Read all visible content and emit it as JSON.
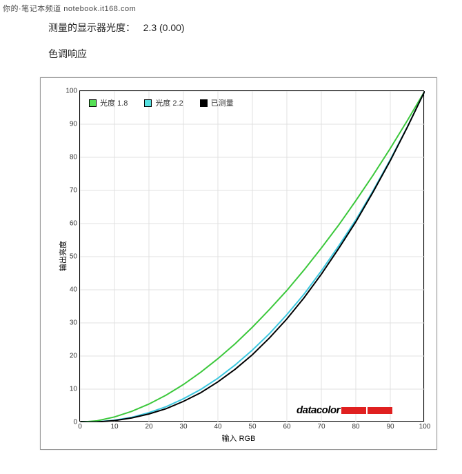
{
  "watermark": "你的·笔记本频道 notebook.it168.com",
  "header": {
    "measured_label": "测量的显示器光度：",
    "measured_value": "2.3 (0.00)",
    "section_title": "色调响应"
  },
  "chart": {
    "type": "line",
    "xlabel": "输入 RGB",
    "ylabel": "输出亮度",
    "xlim": [
      0,
      100
    ],
    "ylim": [
      0,
      100
    ],
    "tick_step": 10,
    "x_ticks": [
      0,
      10,
      20,
      30,
      40,
      50,
      60,
      70,
      80,
      90,
      100
    ],
    "y_ticks": [
      0,
      10,
      20,
      30,
      40,
      50,
      60,
      70,
      80,
      90,
      100
    ],
    "grid_color": "#e0e0e0",
    "background_color": "#ffffff",
    "border_color": "#000000",
    "line_width": 2,
    "legend": [
      {
        "label": "光度 1.8",
        "swatch": "#55e055"
      },
      {
        "label": "光度 2.2",
        "swatch": "#55e0e0"
      },
      {
        "label": "已测量",
        "swatch": "#000000"
      }
    ],
    "series": [
      {
        "name": "gamma_1_8",
        "color": "#3cc83c",
        "points": [
          [
            0,
            0
          ],
          [
            5,
            0.45
          ],
          [
            10,
            1.6
          ],
          [
            15,
            3.3
          ],
          [
            20,
            5.5
          ],
          [
            25,
            8.2
          ],
          [
            30,
            11.4
          ],
          [
            35,
            15.1
          ],
          [
            40,
            19.2
          ],
          [
            45,
            23.7
          ],
          [
            50,
            28.7
          ],
          [
            55,
            34.1
          ],
          [
            60,
            39.8
          ],
          [
            65,
            46.0
          ],
          [
            70,
            52.6
          ],
          [
            75,
            59.5
          ],
          [
            80,
            66.9
          ],
          [
            85,
            74.6
          ],
          [
            90,
            82.7
          ],
          [
            95,
            91.2
          ],
          [
            100,
            100
          ]
        ]
      },
      {
        "name": "gamma_2_2",
        "color": "#3cc8e0",
        "points": [
          [
            0,
            0
          ],
          [
            5,
            0.14
          ],
          [
            10,
            0.63
          ],
          [
            15,
            1.5
          ],
          [
            20,
            2.9
          ],
          [
            25,
            4.7
          ],
          [
            30,
            7.1
          ],
          [
            35,
            9.9
          ],
          [
            40,
            13.3
          ],
          [
            45,
            17.3
          ],
          [
            50,
            21.8
          ],
          [
            55,
            26.8
          ],
          [
            60,
            32.5
          ],
          [
            65,
            38.7
          ],
          [
            70,
            45.7
          ],
          [
            75,
            53.2
          ],
          [
            80,
            61.1
          ],
          [
            85,
            69.9
          ],
          [
            90,
            79.3
          ],
          [
            95,
            89.3
          ],
          [
            100,
            100
          ]
        ]
      },
      {
        "name": "measured",
        "color": "#000000",
        "points": [
          [
            0,
            0
          ],
          [
            5,
            0.1
          ],
          [
            10,
            0.5
          ],
          [
            15,
            1.3
          ],
          [
            20,
            2.5
          ],
          [
            25,
            4.1
          ],
          [
            30,
            6.3
          ],
          [
            35,
            8.9
          ],
          [
            40,
            12.2
          ],
          [
            45,
            16.0
          ],
          [
            50,
            20.4
          ],
          [
            55,
            25.5
          ],
          [
            60,
            31.2
          ],
          [
            65,
            37.6
          ],
          [
            70,
            44.7
          ],
          [
            75,
            52.4
          ],
          [
            80,
            60.5
          ],
          [
            85,
            69.5
          ],
          [
            90,
            79.0
          ],
          [
            95,
            89.2
          ],
          [
            100,
            100
          ]
        ]
      }
    ],
    "brand": {
      "text": "datacolor",
      "bar_color": "#e02020",
      "bar_count": 2
    }
  }
}
